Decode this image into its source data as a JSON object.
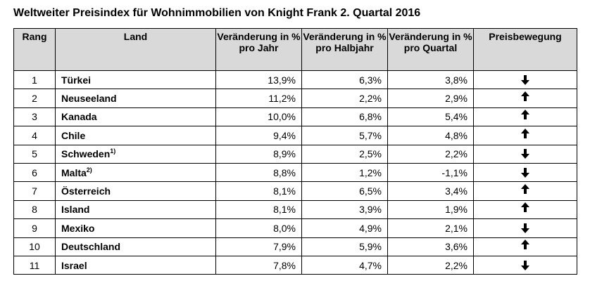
{
  "title": "Weltweiter Preisindex für Wohnimmobilien von Knight Frank 2. Quartal 2016",
  "headers": {
    "rang": "Rang",
    "land": "Land",
    "jahr": "Veränderung in % pro Jahr",
    "halbjahr": "Veränderung in % pro Halbjahr",
    "quartal": "Veränderung in % pro Quartal",
    "bewegung": "Preisbewegung"
  },
  "rows": [
    {
      "rank": "1",
      "land": "Türkei",
      "sup": "",
      "jahr": "13,9%",
      "halbjahr": "6,3%",
      "quartal": "3,8%",
      "trend": "down-arrow-icon"
    },
    {
      "rank": "2",
      "land": "Neuseeland",
      "sup": "",
      "jahr": "11,2%",
      "halbjahr": "2,2%",
      "quartal": "2,9%",
      "trend": "up-arrow-icon"
    },
    {
      "rank": "3",
      "land": "Kanada",
      "sup": "",
      "jahr": "10,0%",
      "halbjahr": "6,8%",
      "quartal": "5,4%",
      "trend": "up-arrow-icon"
    },
    {
      "rank": "4",
      "land": "Chile",
      "sup": "",
      "jahr": "9,4%",
      "halbjahr": "5,7%",
      "quartal": "4,8%",
      "trend": "up-arrow-icon"
    },
    {
      "rank": "5",
      "land": "Schweden",
      "sup": "1)",
      "jahr": "8,9%",
      "halbjahr": "2,5%",
      "quartal": "2,2%",
      "trend": "down-arrow-icon"
    },
    {
      "rank": "6",
      "land": "Malta",
      "sup": "2)",
      "jahr": "8,8%",
      "halbjahr": "1,2%",
      "quartal": "-1,1%",
      "trend": "down-arrow-icon"
    },
    {
      "rank": "7",
      "land": "Österreich",
      "sup": "",
      "jahr": "8,1%",
      "halbjahr": "6,5%",
      "quartal": "3,4%",
      "trend": "up-arrow-icon"
    },
    {
      "rank": "8",
      "land": "Island",
      "sup": "",
      "jahr": "8,1%",
      "halbjahr": "3,9%",
      "quartal": "1,9%",
      "trend": "up-arrow-icon"
    },
    {
      "rank": "9",
      "land": "Mexiko",
      "sup": "",
      "jahr": "8,0%",
      "halbjahr": "4,9%",
      "quartal": "2,1%",
      "trend": "down-arrow-icon"
    },
    {
      "rank": "10",
      "land": "Deutschland",
      "sup": "",
      "jahr": "7,9%",
      "halbjahr": "5,9%",
      "quartal": "3,6%",
      "trend": "up-arrow-icon"
    },
    {
      "rank": "11",
      "land": "Israel",
      "sup": "",
      "jahr": "7,8%",
      "halbjahr": "4,7%",
      "quartal": "2,2%",
      "trend": "down-arrow-icon"
    }
  ]
}
